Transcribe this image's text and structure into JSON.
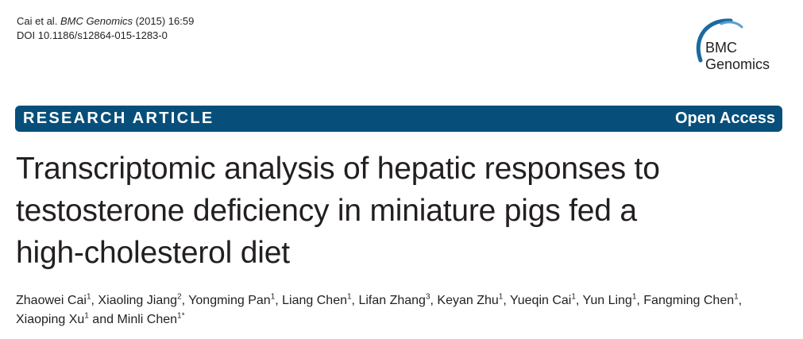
{
  "citation": {
    "authors": "Cai et al.",
    "journal": "BMC Genomics",
    "details": "(2015) 16:59",
    "doi": "DOI 10.1186/s12864-015-1283-0"
  },
  "logo": {
    "line1": "BMC",
    "line2": "Genomics",
    "accent_color": "#1a6aa0"
  },
  "banner": {
    "article_type": "RESEARCH ARTICLE",
    "access": "Open Access",
    "color": "#074f7a"
  },
  "title": {
    "line1": "Transcriptomic analysis of hepatic responses to",
    "line2": "testosterone deficiency in miniature pigs fed a",
    "line3": "high-cholesterol diet"
  },
  "authors": [
    {
      "name": "Zhaowei Cai",
      "aff": "1",
      "sep": ", "
    },
    {
      "name": "Xiaoling Jiang",
      "aff": "2",
      "sep": ", "
    },
    {
      "name": "Yongming Pan",
      "aff": "1",
      "sep": ", "
    },
    {
      "name": "Liang Chen",
      "aff": "1",
      "sep": ", "
    },
    {
      "name": "Lifan Zhang",
      "aff": "3",
      "sep": ", "
    },
    {
      "name": "Keyan Zhu",
      "aff": "1",
      "sep": ", "
    },
    {
      "name": "Yueqin Cai",
      "aff": "1",
      "sep": ", "
    },
    {
      "name": "Yun Ling",
      "aff": "1",
      "sep": ", "
    },
    {
      "name": "Fangming Chen",
      "aff": "1",
      "sep": ", "
    },
    {
      "name": "Xiaoping Xu",
      "aff": "1",
      "sep": " and "
    },
    {
      "name": "Minli Chen",
      "aff": "1*",
      "sep": ""
    }
  ]
}
